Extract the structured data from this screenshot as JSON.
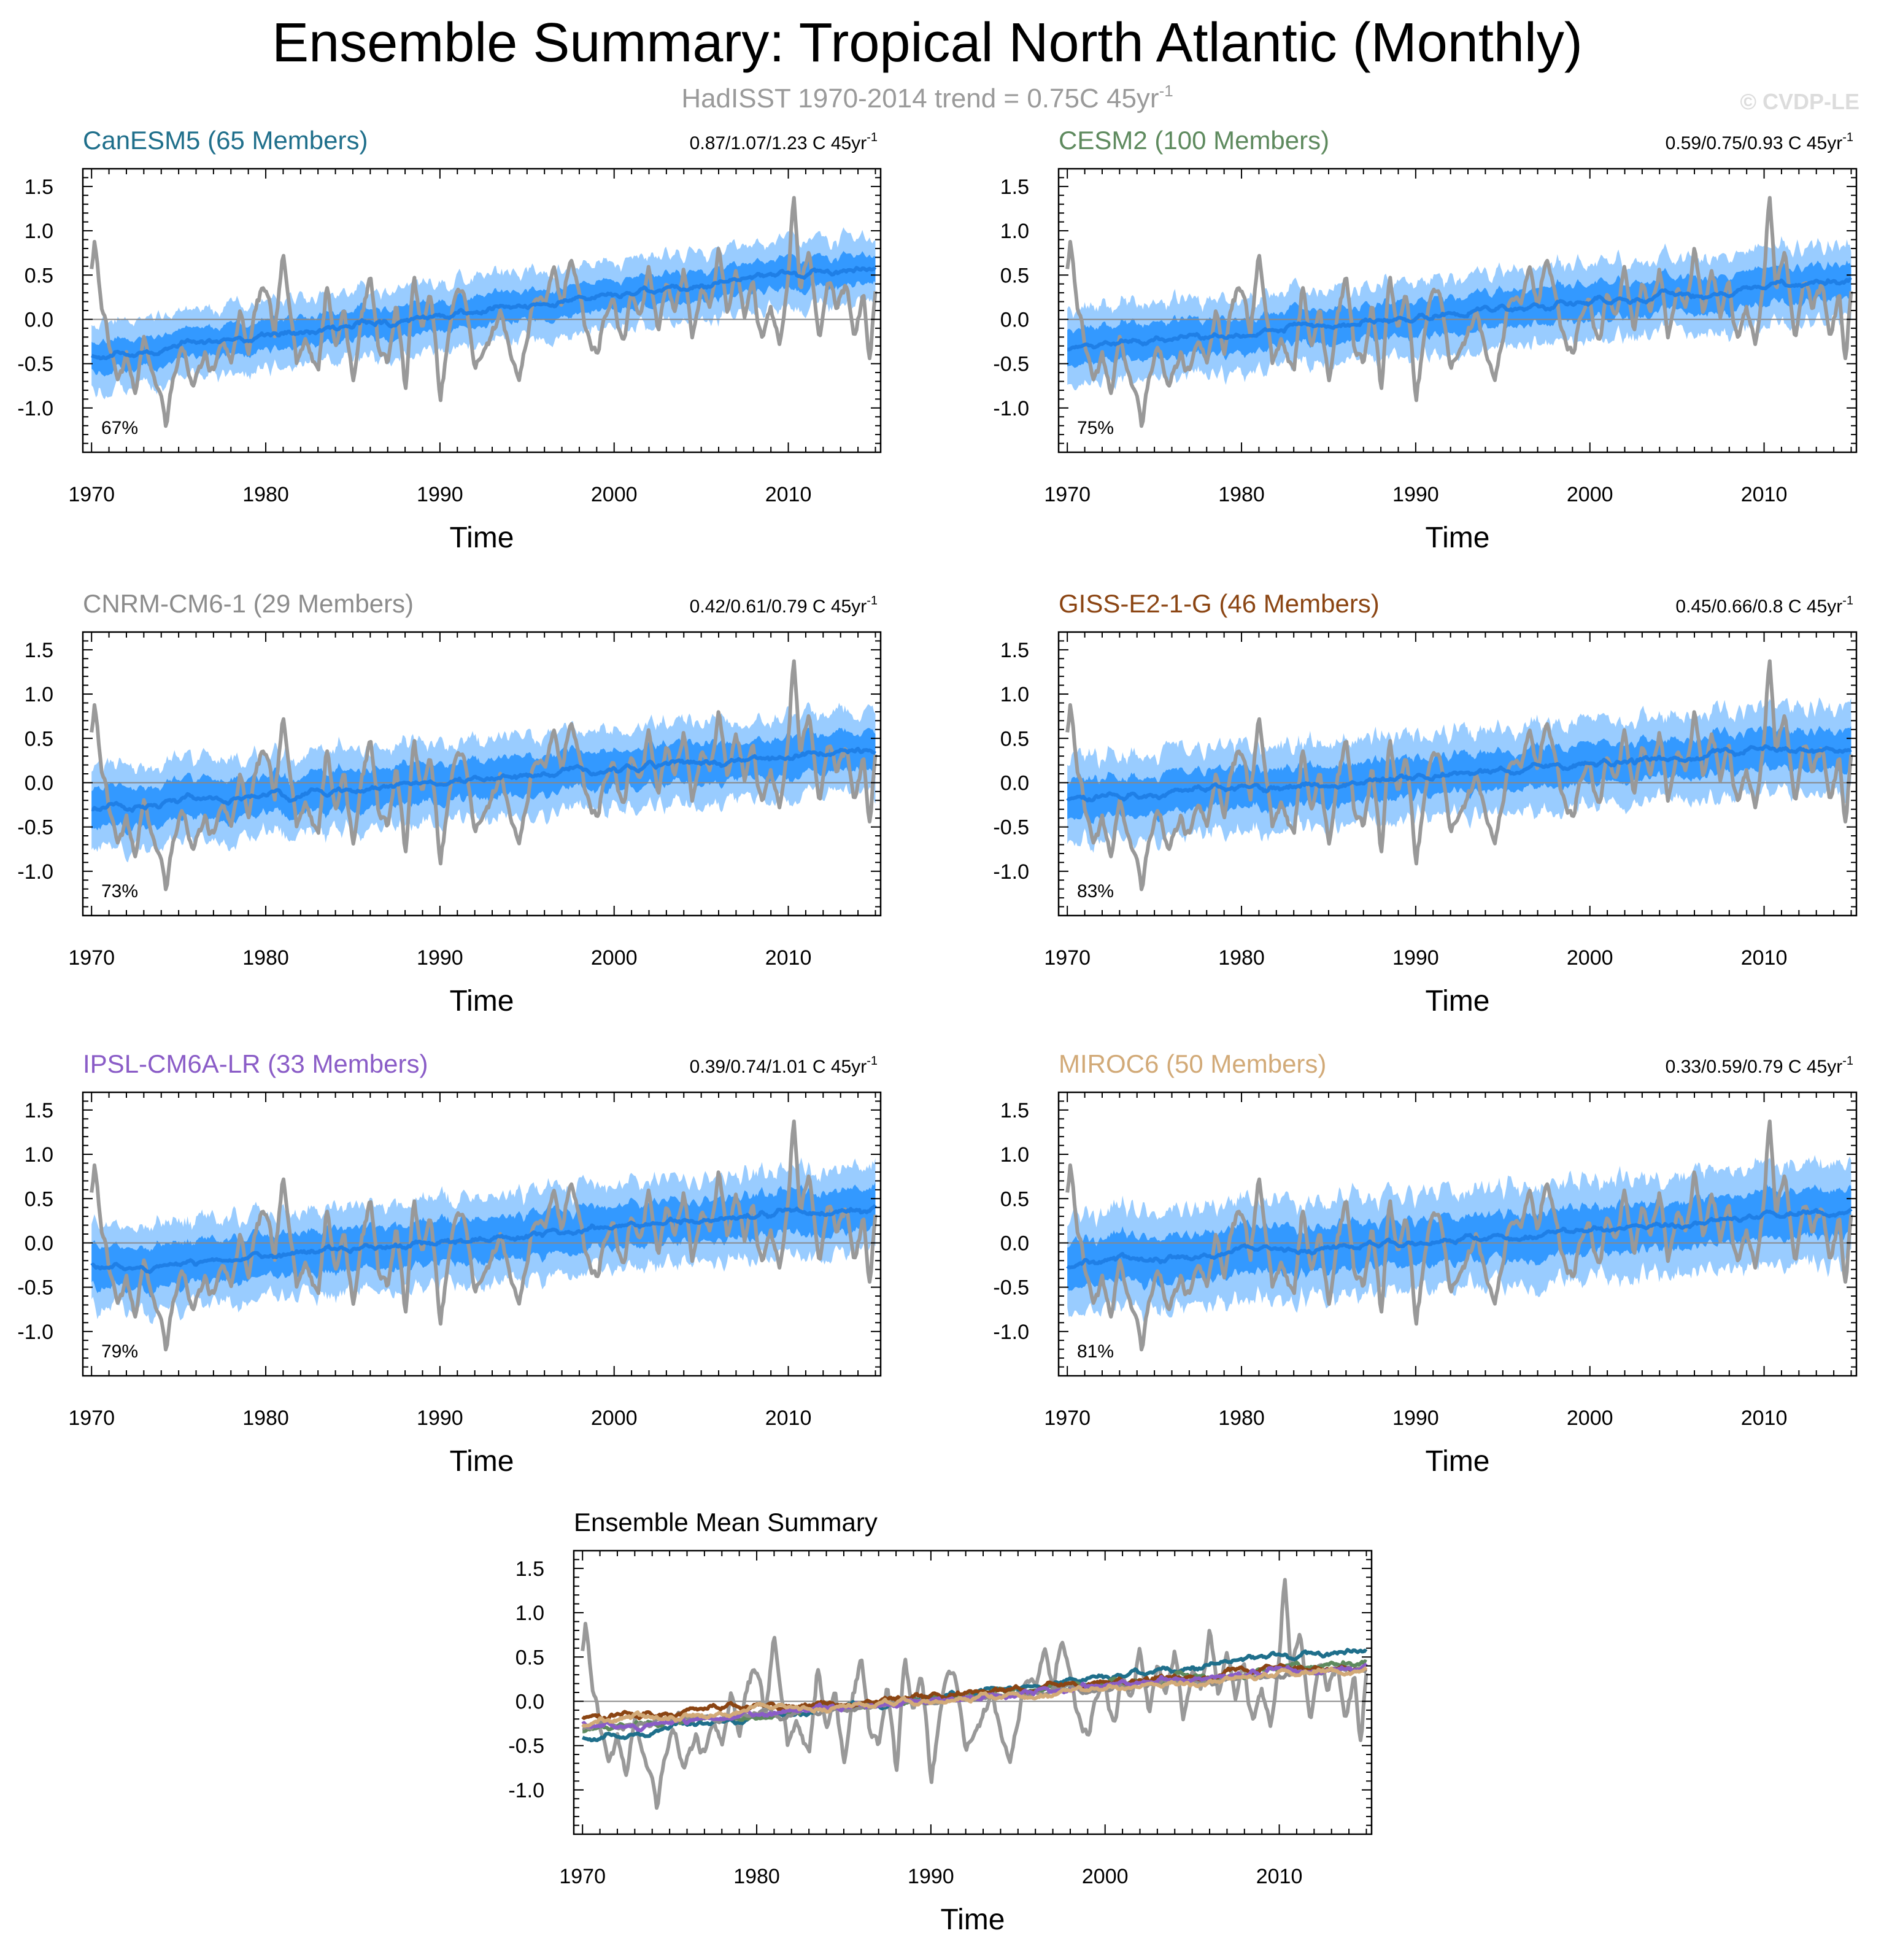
{
  "title": "Ensemble Summary: Tropical North Atlantic (Monthly)",
  "subtitle": {
    "text": "HadISST 1970-2014 trend = 0.75C 45yr",
    "sup": "-1"
  },
  "copyright": "© CVDP-LE",
  "trend_unit": {
    "text": " C 45yr",
    "sup": "-1"
  },
  "colors": {
    "observations": "#999999",
    "ensemble_spread_outer": "#99ccff",
    "ensemble_spread_inner": "#3399ff",
    "ensemble_mean": "#1f7fe6",
    "zero_line": "#888888"
  },
  "chart_data": [
    {
      "type": "area",
      "title": "CanESM5 (65 Members)",
      "title_color": "#1f6f8b",
      "trend_text": "0.87/1.07/1.23",
      "percent": "67%",
      "xlabel": "Time",
      "xlim": [
        1969.5,
        2015.3
      ],
      "ylim": [
        -1.5,
        1.7
      ],
      "xticks": [
        1970,
        1980,
        1990,
        2000,
        2010
      ],
      "yticks": [
        -1.0,
        -0.5,
        0.0,
        0.5,
        1.0,
        1.5
      ],
      "ytick_labels": [
        "-1.0",
        "-0.5",
        "0.0",
        "0.5",
        "1.0",
        "1.5"
      ],
      "mean_trend": {
        "start": -0.42,
        "end": 0.62
      },
      "spread": {
        "outer": 0.38,
        "inner": 0.17
      }
    },
    {
      "type": "area",
      "title": "CESM2 (100 Members)",
      "title_color": "#5e8a5e",
      "trend_text": "0.59/0.75/0.93",
      "percent": "75%",
      "xlabel": "Time",
      "xlim": [
        1969.5,
        2015.3
      ],
      "ylim": [
        -1.5,
        1.7
      ],
      "xticks": [
        1970,
        1980,
        1990,
        2000,
        2010
      ],
      "yticks": [
        -1.0,
        -0.5,
        0.0,
        0.5,
        1.0,
        1.5
      ],
      "ytick_labels": [
        "-1.0",
        "-0.5",
        "0.0",
        "0.5",
        "1.0",
        "1.5"
      ],
      "mean_trend": {
        "start": -0.32,
        "end": 0.45
      },
      "spread": {
        "outer": 0.42,
        "inner": 0.2
      }
    },
    {
      "type": "area",
      "title": "CNRM-CM6-1 (29 Members)",
      "title_color": "#8c8c8c",
      "trend_text": "0.42/0.61/0.79",
      "percent": "73%",
      "xlabel": "Time",
      "xlim": [
        1969.5,
        2015.3
      ],
      "ylim": [
        -1.5,
        1.7
      ],
      "xticks": [
        1970,
        1980,
        1990,
        2000,
        2010
      ],
      "yticks": [
        -1.0,
        -0.5,
        0.0,
        0.5,
        1.0,
        1.5
      ],
      "ytick_labels": [
        "-1.0",
        "-0.5",
        "0.0",
        "0.5",
        "1.0",
        "1.5"
      ],
      "mean_trend": {
        "start": -0.28,
        "end": 0.36
      },
      "spread": {
        "outer": 0.45,
        "inner": 0.22
      }
    },
    {
      "type": "area",
      "title": "GISS-E2-1-G (46 Members)",
      "title_color": "#8b4513",
      "trend_text": "0.45/0.66/0.8",
      "percent": "83%",
      "xlabel": "Time",
      "xlim": [
        1969.5,
        2015.3
      ],
      "ylim": [
        -1.5,
        1.7
      ],
      "xticks": [
        1970,
        1980,
        1990,
        2000,
        2010
      ],
      "yticks": [
        -1.0,
        -0.5,
        0.0,
        0.5,
        1.0,
        1.5
      ],
      "ytick_labels": [
        "-1.0",
        "-0.5",
        "0.0",
        "0.5",
        "1.0",
        "1.5"
      ],
      "mean_trend": {
        "start": -0.2,
        "end": 0.42
      },
      "spread": {
        "outer": 0.48,
        "inner": 0.22
      }
    },
    {
      "type": "area",
      "title": "IPSL-CM6A-LR (33 Members)",
      "title_color": "#8a5cc7",
      "trend_text": "0.39/0.74/1.01",
      "percent": "79%",
      "xlabel": "Time",
      "xlim": [
        1969.5,
        2015.3
      ],
      "ylim": [
        -1.5,
        1.7
      ],
      "xticks": [
        1970,
        1980,
        1990,
        2000,
        2010
      ],
      "yticks": [
        -1.0,
        -0.5,
        0.0,
        0.5,
        1.0,
        1.5
      ],
      "ytick_labels": [
        "-1.0",
        "-0.5",
        "0.0",
        "0.5",
        "1.0",
        "1.5"
      ],
      "mean_trend": {
        "start": -0.3,
        "end": 0.4
      },
      "spread": {
        "outer": 0.48,
        "inner": 0.24
      }
    },
    {
      "type": "area",
      "title": "MIROC6 (50 Members)",
      "title_color": "#d2aa78",
      "trend_text": "0.33/0.59/0.79",
      "percent": "81%",
      "xlabel": "Time",
      "xlim": [
        1969.5,
        2015.3
      ],
      "ylim": [
        -1.5,
        1.7
      ],
      "xticks": [
        1970,
        1980,
        1990,
        2000,
        2010
      ],
      "yticks": [
        -1.0,
        -0.5,
        0.0,
        0.5,
        1.0,
        1.5
      ],
      "ytick_labels": [
        "-1.0",
        "-0.5",
        "0.0",
        "0.5",
        "1.0",
        "1.5"
      ],
      "mean_trend": {
        "start": -0.25,
        "end": 0.35
      },
      "spread": {
        "outer": 0.55,
        "inner": 0.26
      }
    },
    {
      "type": "line",
      "title": "Ensemble Mean Summary",
      "title_color": "#000000",
      "xlabel": "Time",
      "xlim": [
        1969.5,
        2015.3
      ],
      "ylim": [
        -1.5,
        1.7
      ],
      "xticks": [
        1970,
        1980,
        1990,
        2000,
        2010
      ],
      "yticks": [
        -1.0,
        -0.5,
        0.0,
        0.5,
        1.0,
        1.5
      ],
      "ytick_labels": [
        "-1.0",
        "-0.5",
        "0.0",
        "0.5",
        "1.0",
        "1.5"
      ],
      "series": [
        {
          "name": "CanESM5",
          "color": "#1f6f8b",
          "start": -0.42,
          "end": 0.62
        },
        {
          "name": "CESM2",
          "color": "#5e8a5e",
          "start": -0.32,
          "end": 0.45
        },
        {
          "name": "CNRM-CM6-1",
          "color": "#8c8c8c",
          "start": -0.28,
          "end": 0.36
        },
        {
          "name": "GISS-E2-1-G",
          "color": "#8b4513",
          "start": -0.2,
          "end": 0.42
        },
        {
          "name": "IPSL-CM6A-LR",
          "color": "#8a5cc7",
          "start": -0.3,
          "end": 0.4
        },
        {
          "name": "MIROC6",
          "color": "#d2aa78",
          "start": -0.25,
          "end": 0.35
        }
      ]
    }
  ],
  "observations": {
    "name": "HadISST",
    "anchors_x": [
      1970.0,
      1970.2,
      1970.5,
      1971.0,
      1971.5,
      1972.0,
      1972.5,
      1973.0,
      1973.5,
      1974.0,
      1974.3,
      1974.7,
      1975.2,
      1975.8,
      1976.5,
      1977.0,
      1977.5,
      1978.0,
      1978.5,
      1979.0,
      1979.5,
      1980.0,
      1980.5,
      1981.0,
      1981.4,
      1981.8,
      1982.3,
      1983.0,
      1983.5,
      1984.0,
      1984.5,
      1985.0,
      1985.5,
      1986.0,
      1986.5,
      1987.0,
      1987.5,
      1988.0,
      1988.5,
      1989.0,
      1989.5,
      1990.0,
      1990.5,
      1991.0,
      1991.5,
      1992.0,
      1992.5,
      1993.0,
      1993.5,
      1994.0,
      1994.5,
      1995.0,
      1995.5,
      1996.0,
      1996.5,
      1997.0,
      1997.5,
      1998.0,
      1998.5,
      1999.0,
      1999.5,
      2000.0,
      2000.5,
      2001.0,
      2001.5,
      2002.0,
      2002.5,
      2003.0,
      2003.5,
      2004.0,
      2004.5,
      2005.0,
      2005.5,
      2006.0,
      2006.5,
      2007.0,
      2007.5,
      2008.0,
      2008.5,
      2009.0,
      2009.5,
      2010.0,
      2010.3,
      2010.7,
      2011.2,
      2011.8,
      2012.3,
      2012.8,
      2013.3,
      2013.8,
      2014.3,
      2014.7,
      2015.0
    ],
    "anchors_y": [
      0.55,
      0.85,
      0.3,
      -0.3,
      -0.7,
      -0.4,
      -0.8,
      -0.2,
      -0.6,
      -0.9,
      -1.2,
      -0.6,
      -0.3,
      -0.8,
      -0.4,
      -0.6,
      -0.2,
      -0.5,
      0.1,
      -0.4,
      0.2,
      0.35,
      -0.2,
      0.7,
      0.2,
      -0.5,
      -0.2,
      -0.6,
      0.4,
      -0.3,
      0.1,
      -0.7,
      0.0,
      0.5,
      -0.3,
      -0.5,
      0.2,
      -0.8,
      0.45,
      -0.1,
      0.3,
      -0.95,
      -0.2,
      0.4,
      0.2,
      -0.6,
      -0.3,
      -0.2,
      0.1,
      -0.3,
      -0.7,
      -0.2,
      0.3,
      0.1,
      0.6,
      0.2,
      0.7,
      0.3,
      -0.2,
      -0.4,
      0.1,
      0.2,
      -0.3,
      0.3,
      0.0,
      0.6,
      -0.1,
      0.4,
      0.1,
      0.6,
      -0.2,
      0.35,
      0.2,
      0.8,
      0.1,
      0.55,
      0.0,
      0.4,
      -0.3,
      0.2,
      -0.4,
      0.5,
      1.42,
      0.3,
      0.8,
      -0.2,
      0.5,
      0.1,
      0.4,
      -0.2,
      0.3,
      -0.45,
      0.25
    ]
  }
}
